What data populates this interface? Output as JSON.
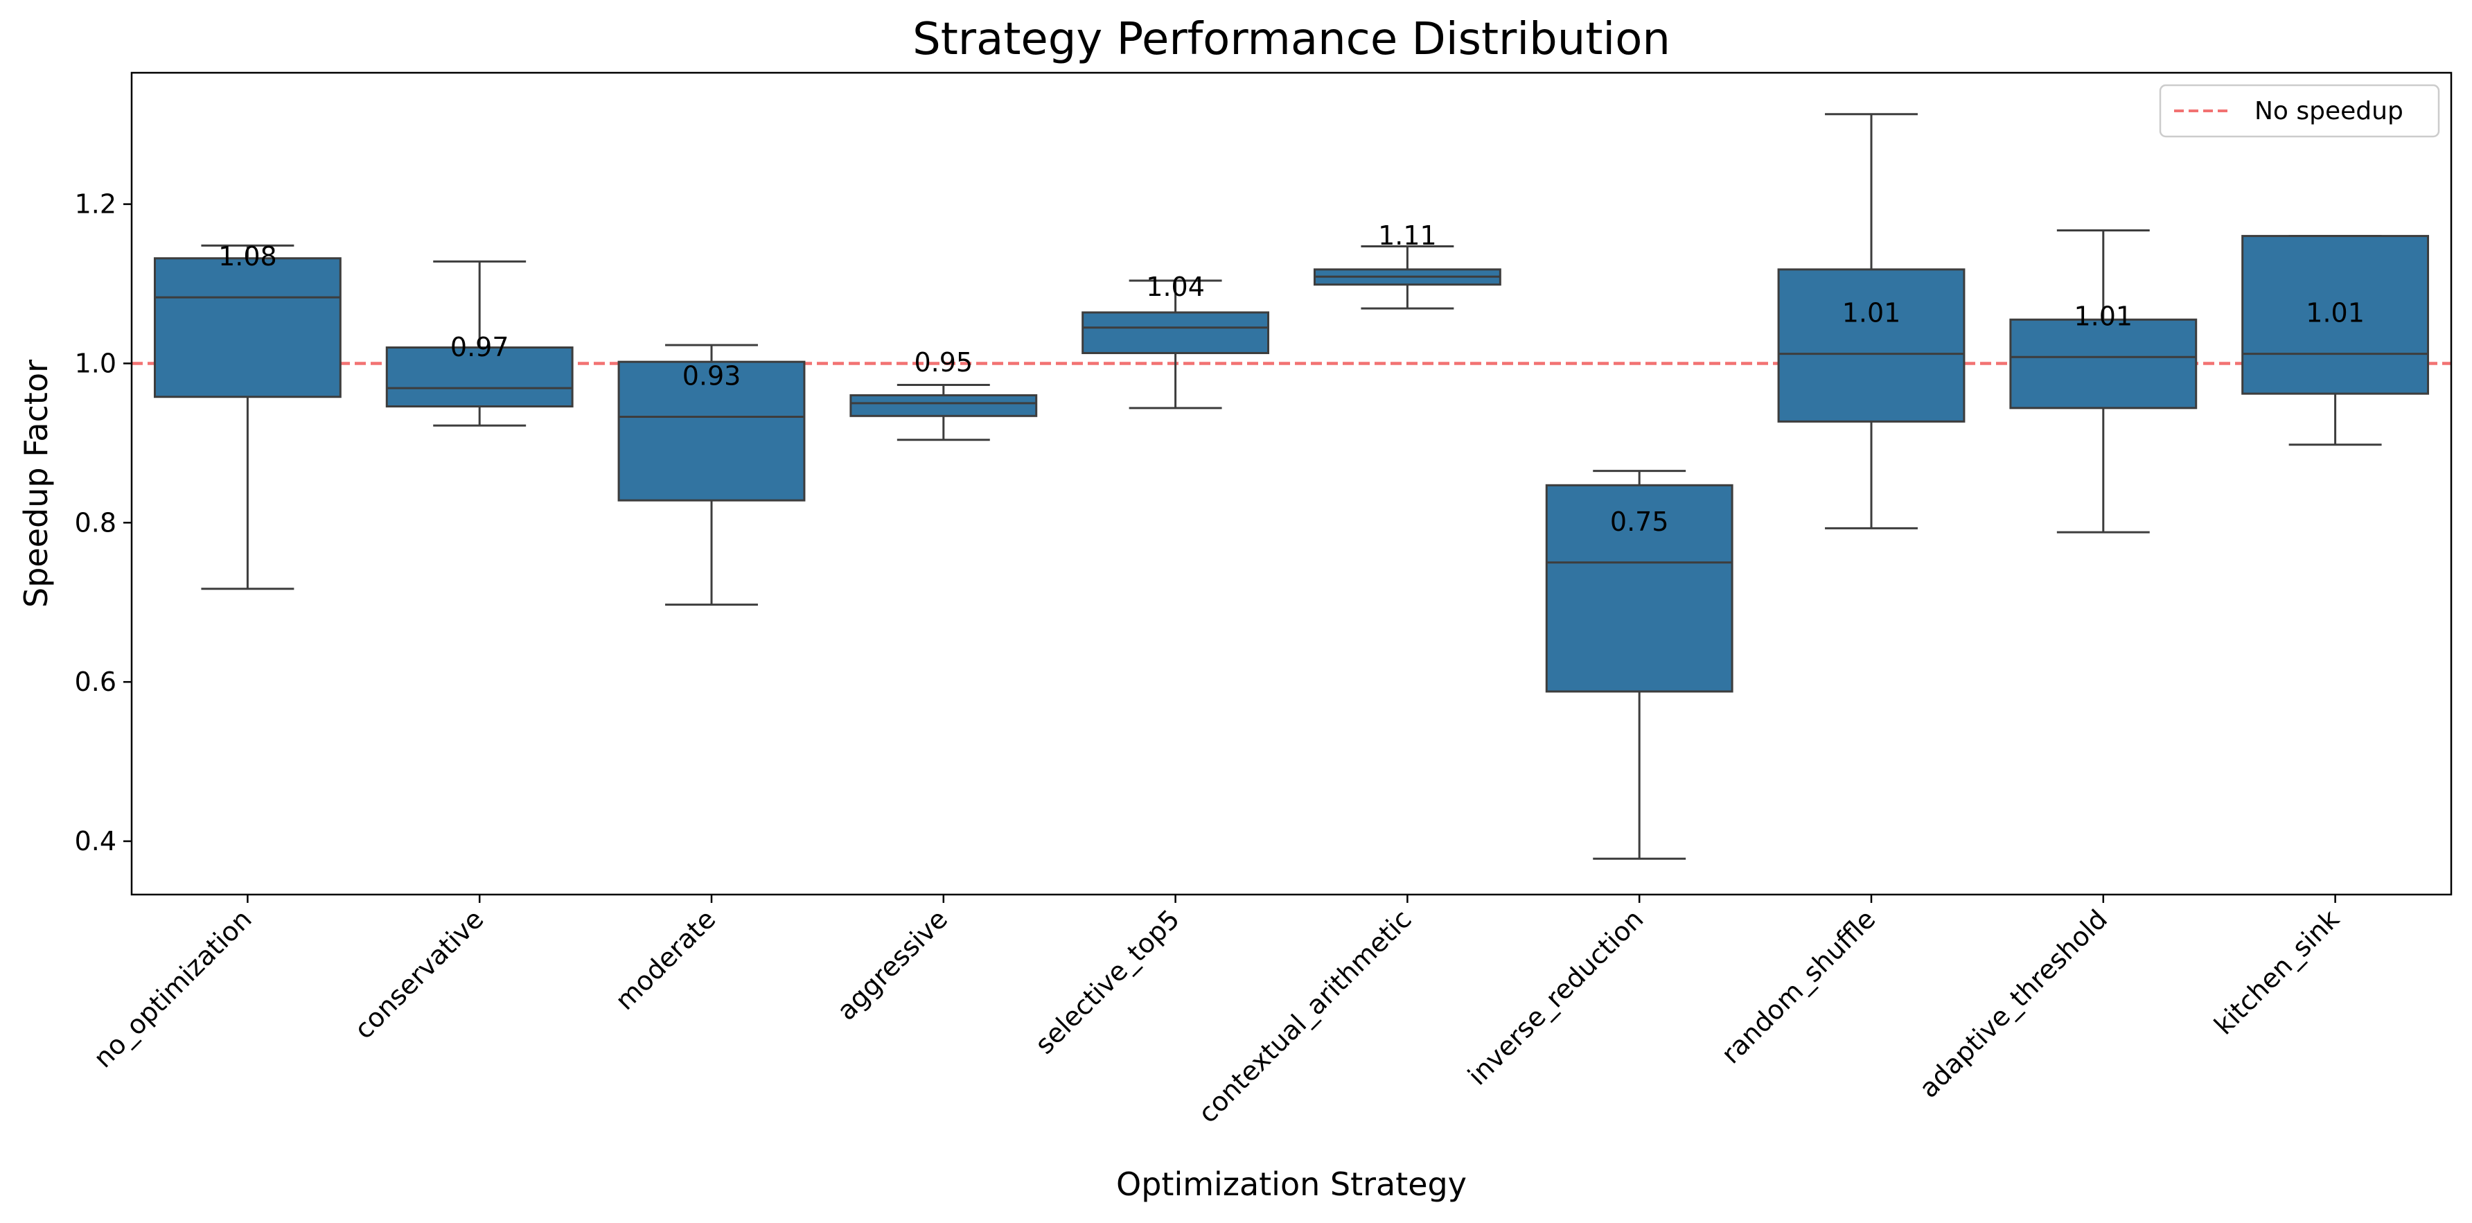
{
  "chart_data": {
    "type": "box",
    "title": "Strategy Performance Distribution",
    "xlabel": "Optimization Strategy",
    "ylabel": "Speedup Factor",
    "ylim": [
      0.333,
      1.365
    ],
    "yticks": [
      "0.4",
      "0.6",
      "0.8",
      "1.0",
      "1.2"
    ],
    "grid": false,
    "legend": {
      "placement": "top-right",
      "entries": [
        "No speedup"
      ]
    },
    "reference_line": {
      "y": 1.0,
      "label": "No speedup",
      "color": "#f27272",
      "style": "dashed"
    },
    "box_color": "#3274a1",
    "edge_color": "#3d3d3d",
    "categories": [
      "no_optimization",
      "conservative",
      "moderate",
      "aggressive",
      "selective_top5",
      "contextual_arithmetic",
      "inverse_reduction",
      "random_shuffle",
      "adaptive_threshold",
      "kitchen_sink"
    ],
    "median_labels": [
      "1.08",
      "0.97",
      "0.93",
      "0.95",
      "1.04",
      "1.11",
      "0.75",
      "1.01",
      "1.01",
      "1.01"
    ],
    "boxes": [
      {
        "whislo": 0.717,
        "q1": 0.958,
        "med": 1.083,
        "q3": 1.132,
        "whishi": 1.148
      },
      {
        "whislo": 0.922,
        "q1": 0.946,
        "med": 0.969,
        "q3": 1.02,
        "whishi": 1.128
      },
      {
        "whislo": 0.697,
        "q1": 0.828,
        "med": 0.933,
        "q3": 1.002,
        "whishi": 1.023
      },
      {
        "whislo": 0.904,
        "q1": 0.934,
        "med": 0.95,
        "q3": 0.96,
        "whishi": 0.973
      },
      {
        "whislo": 0.944,
        "q1": 1.013,
        "med": 1.045,
        "q3": 1.064,
        "whishi": 1.104
      },
      {
        "whislo": 1.069,
        "q1": 1.099,
        "med": 1.109,
        "q3": 1.118,
        "whishi": 1.147
      },
      {
        "whislo": 0.378,
        "q1": 0.588,
        "med": 0.75,
        "q3": 0.847,
        "whishi": 0.865
      },
      {
        "whislo": 0.793,
        "q1": 0.927,
        "med": 1.012,
        "q3": 1.118,
        "whishi": 1.313
      },
      {
        "whislo": 0.788,
        "q1": 0.944,
        "med": 1.008,
        "q3": 1.055,
        "whishi": 1.167
      },
      {
        "whislo": 0.898,
        "q1": 0.962,
        "med": 1.012,
        "q3": 1.16,
        "whishi": 1.16
      }
    ]
  }
}
